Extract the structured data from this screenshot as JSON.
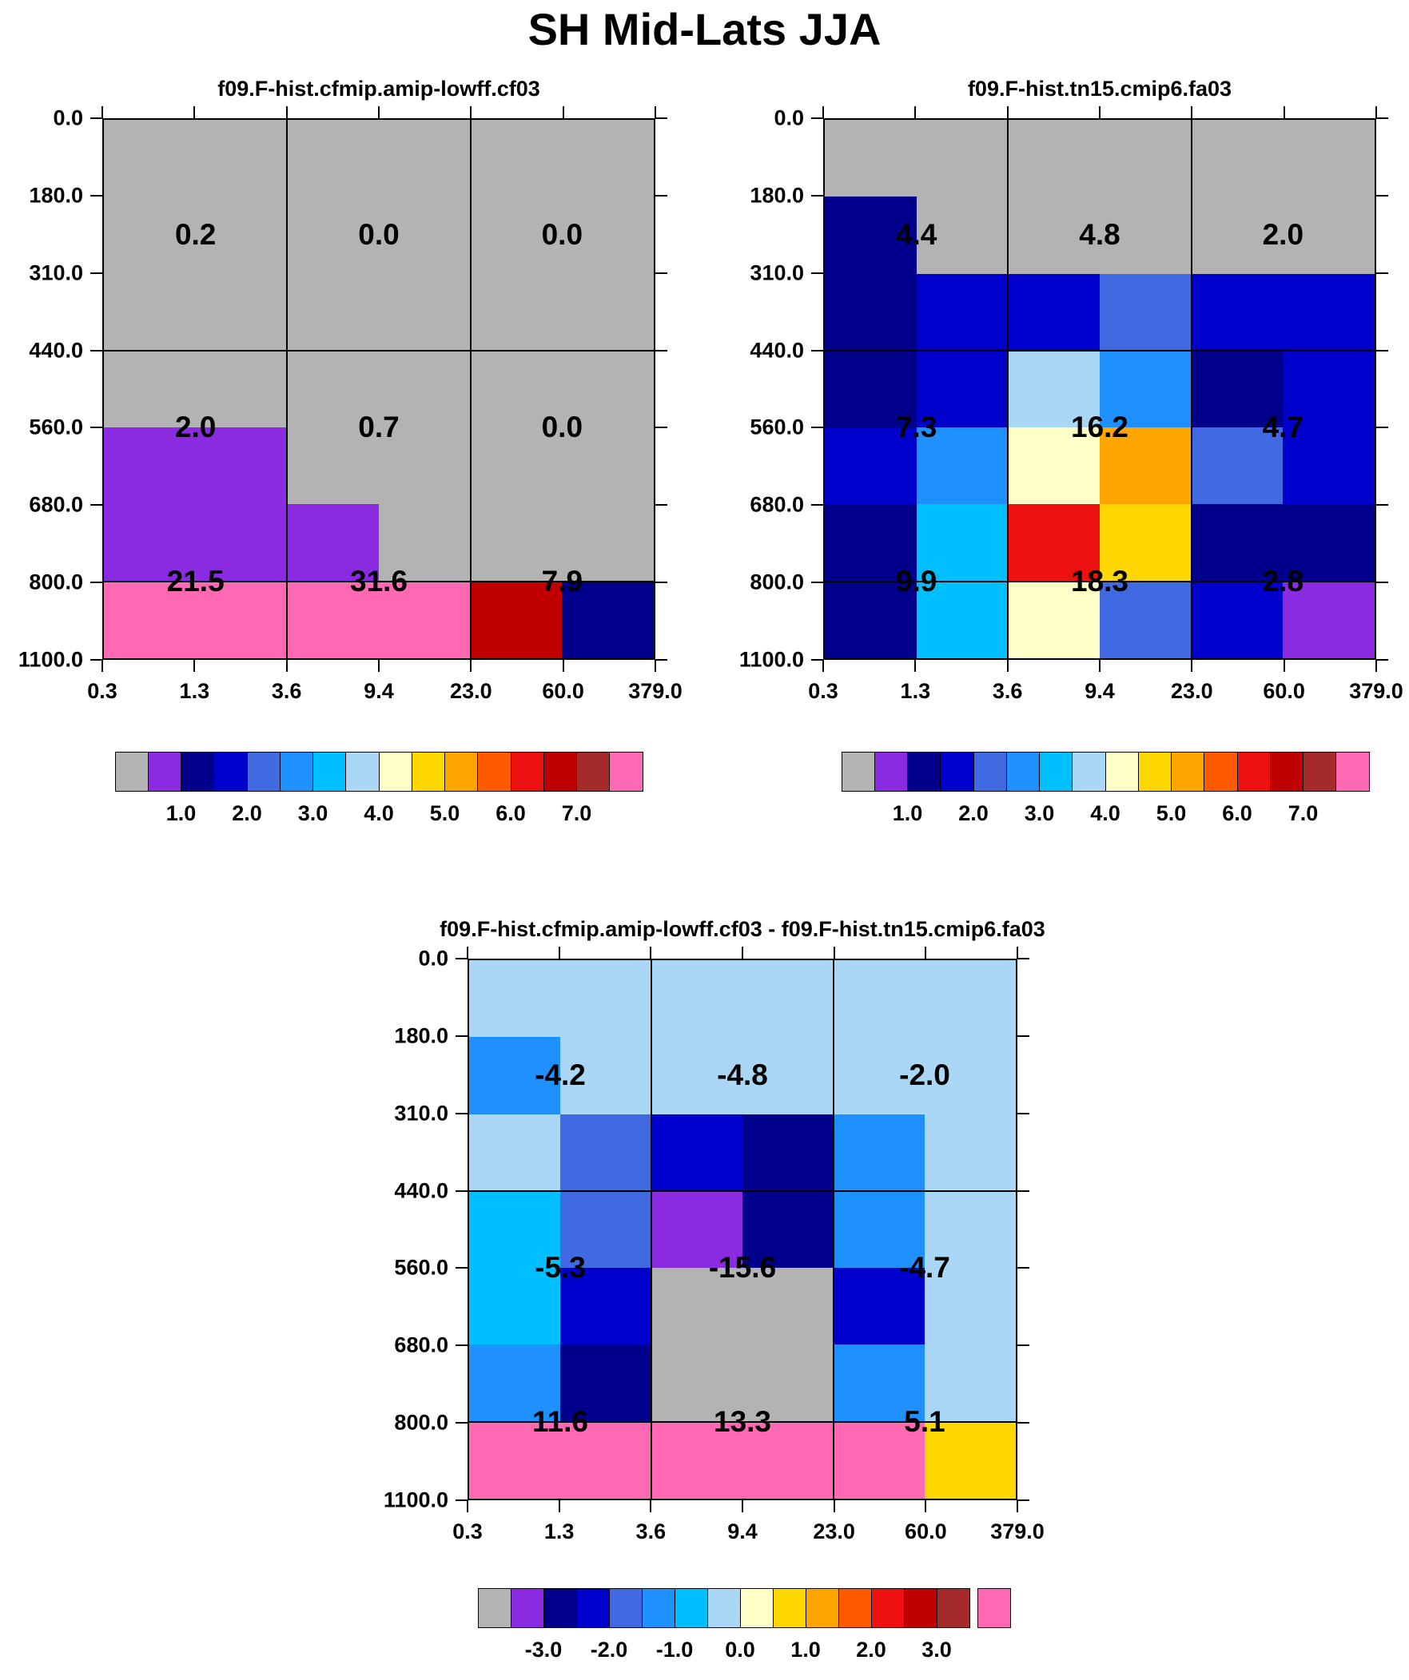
{
  "title": "SH Mid-Lats JJA",
  "palette": [
    {
      "name": "gray",
      "hex": "#b3b3b3"
    },
    {
      "name": "blue-violet",
      "hex": "#8a2be2"
    },
    {
      "name": "navy",
      "hex": "#00008b"
    },
    {
      "name": "medium-blue",
      "hex": "#0000cd"
    },
    {
      "name": "royal-blue",
      "hex": "#4169e1"
    },
    {
      "name": "dodger-blue",
      "hex": "#1e90ff"
    },
    {
      "name": "deep-sky-blue",
      "hex": "#00bfff"
    },
    {
      "name": "pale-blue",
      "hex": "#a9d7f5"
    },
    {
      "name": "cream",
      "hex": "#ffffc8"
    },
    {
      "name": "gold",
      "hex": "#ffd700"
    },
    {
      "name": "orange",
      "hex": "#ffa500"
    },
    {
      "name": "orange-red",
      "hex": "#ff5a00"
    },
    {
      "name": "red",
      "hex": "#ee1111"
    },
    {
      "name": "dark-red",
      "hex": "#c00000"
    },
    {
      "name": "brown",
      "hex": "#a52a2a"
    },
    {
      "name": "pink",
      "hex": "#ff69b4"
    }
  ],
  "chart_data": [
    {
      "type": "heatmap",
      "title": "f09.F-hist.cfmip.amip-lowff.cf03",
      "x_ticks": [
        "0.3",
        "1.3",
        "3.6",
        "9.4",
        "23.0",
        "60.0",
        "379.0"
      ],
      "y_ticks": [
        "0.0",
        "180.0",
        "310.0",
        "440.0",
        "560.0",
        "680.0",
        "800.0",
        "1100.0"
      ],
      "cells": [
        [
          0,
          0,
          0,
          0,
          0,
          0
        ],
        [
          0,
          0,
          0,
          0,
          0,
          0
        ],
        [
          0,
          0,
          0,
          0,
          0,
          0
        ],
        [
          0,
          0,
          0,
          0,
          0,
          0
        ],
        [
          1,
          1,
          0,
          0,
          0,
          0
        ],
        [
          1,
          1,
          1,
          0,
          0,
          0
        ],
        [
          15,
          15,
          15,
          15,
          13,
          2
        ]
      ],
      "values": [
        [
          "0.2",
          "0.0",
          "0.0"
        ],
        [
          "2.0",
          "0.7",
          "0.0"
        ],
        [
          "21.5",
          "31.6",
          "7.9"
        ]
      ],
      "colorbar_colors": [
        0,
        1,
        2,
        3,
        4,
        5,
        6,
        7,
        8,
        9,
        10,
        11,
        12,
        13,
        14,
        15
      ],
      "colorbar_labels": [
        "1.0",
        "2.0",
        "3.0",
        "4.0",
        "5.0",
        "6.0",
        "7.0"
      ]
    },
    {
      "type": "heatmap",
      "title": "f09.F-hist.tn15.cmip6.fa03",
      "x_ticks": [
        "0.3",
        "1.3",
        "3.6",
        "9.4",
        "23.0",
        "60.0",
        "379.0"
      ],
      "y_ticks": [
        "0.0",
        "180.0",
        "310.0",
        "440.0",
        "560.0",
        "680.0",
        "800.0",
        "1100.0"
      ],
      "cells": [
        [
          0,
          0,
          0,
          0,
          0,
          0
        ],
        [
          2,
          0,
          0,
          0,
          0,
          0
        ],
        [
          2,
          3,
          3,
          4,
          3,
          3
        ],
        [
          2,
          3,
          7,
          5,
          2,
          3
        ],
        [
          3,
          5,
          8,
          10,
          4,
          3
        ],
        [
          2,
          6,
          12,
          9,
          2,
          2
        ],
        [
          2,
          6,
          8,
          4,
          3,
          1
        ]
      ],
      "values": [
        [
          "4.4",
          "4.8",
          "2.0"
        ],
        [
          "7.3",
          "16.2",
          "4.7"
        ],
        [
          "9.9",
          "18.3",
          "2.8"
        ]
      ],
      "colorbar_colors": [
        0,
        1,
        2,
        3,
        4,
        5,
        6,
        7,
        8,
        9,
        10,
        11,
        12,
        13,
        14,
        15
      ],
      "colorbar_labels": [
        "1.0",
        "2.0",
        "3.0",
        "4.0",
        "5.0",
        "6.0",
        "7.0"
      ]
    },
    {
      "type": "heatmap",
      "title": "f09.F-hist.cfmip.amip-lowff.cf03 - f09.F-hist.tn15.cmip6.fa03",
      "x_ticks": [
        "0.3",
        "1.3",
        "3.6",
        "9.4",
        "23.0",
        "60.0",
        "379.0"
      ],
      "y_ticks": [
        "0.0",
        "180.0",
        "310.0",
        "440.0",
        "560.0",
        "680.0",
        "800.0",
        "1100.0"
      ],
      "cells": [
        [
          7,
          7,
          7,
          7,
          7,
          7
        ],
        [
          5,
          7,
          7,
          7,
          7,
          7
        ],
        [
          7,
          4,
          3,
          2,
          5,
          7
        ],
        [
          6,
          4,
          1,
          2,
          5,
          7
        ],
        [
          6,
          3,
          0,
          0,
          3,
          7
        ],
        [
          5,
          2,
          0,
          0,
          5,
          7
        ],
        [
          15,
          15,
          15,
          15,
          15,
          9
        ]
      ],
      "values": [
        [
          "-4.2",
          "-4.8",
          "-2.0"
        ],
        [
          "-5.3",
          "-15.6",
          "-4.7"
        ],
        [
          "11.6",
          "13.3",
          "5.1"
        ]
      ],
      "colorbar_colors": [
        0,
        1,
        2,
        3,
        4,
        5,
        6,
        7,
        8,
        9,
        10,
        11,
        12,
        13,
        14,
        15
      ],
      "colorbar_labels": [
        "-3.0",
        "-2.0",
        "-1.0",
        "0.0",
        "1.0",
        "2.0",
        "3.0"
      ]
    }
  ]
}
